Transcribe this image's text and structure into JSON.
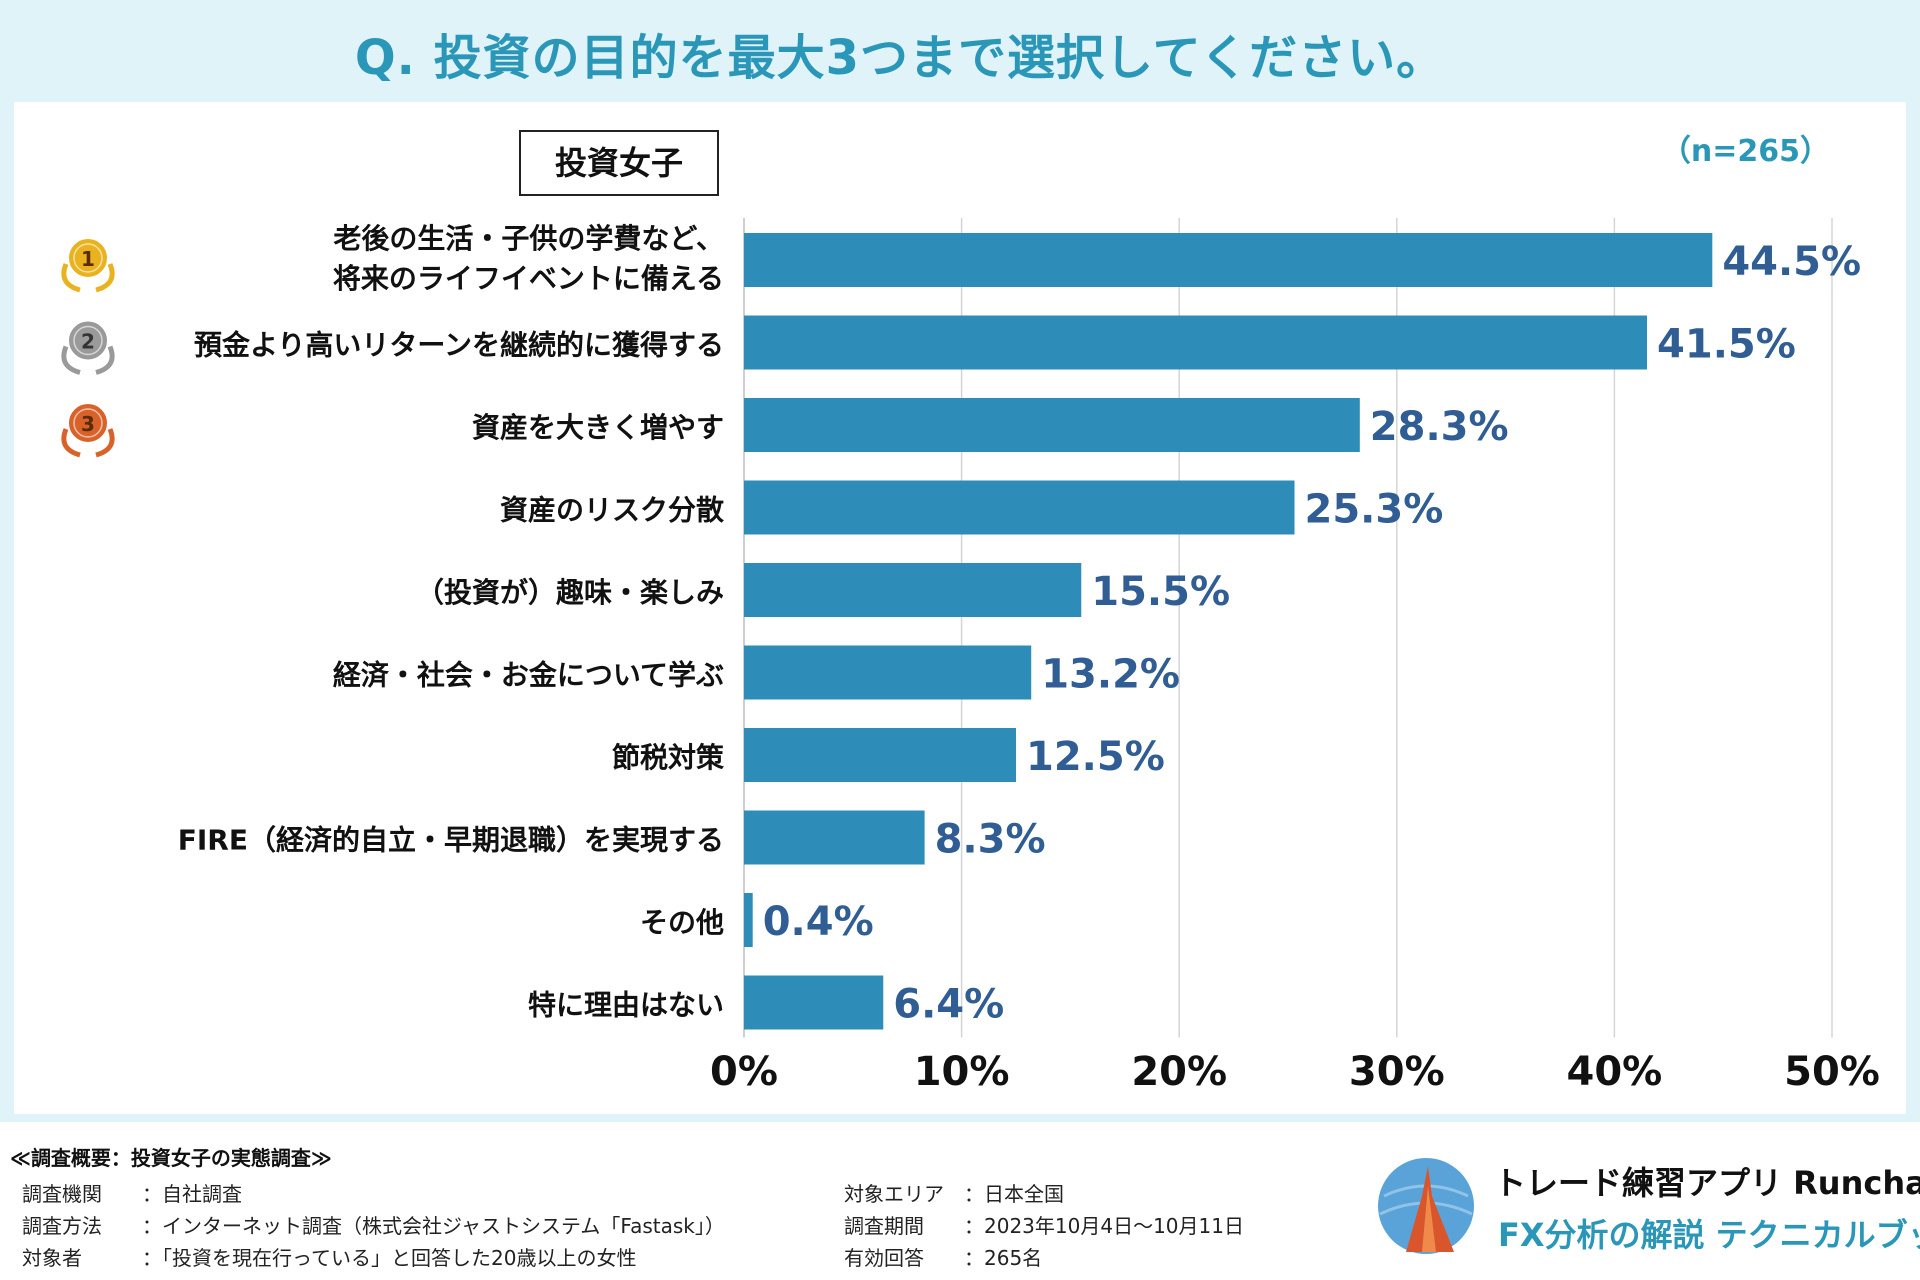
{
  "title": "Q. 投資の目的を最大3つまで選択してください。",
  "group_label": "投資女子",
  "sample_size": "（n=265）",
  "chart_data": {
    "type": "bar",
    "orientation": "horizontal",
    "title": "Q. 投資の目的を最大3つまで選択してください。",
    "categories": [
      [
        "老後の生活・子供の学費など、",
        "将来のライフイベントに備える"
      ],
      [
        "預金より高いリターンを継続的に獲得する"
      ],
      [
        "資産を大きく増やす"
      ],
      [
        "資産のリスク分散"
      ],
      [
        "（投資が）趣味・楽しみ"
      ],
      [
        "経済・社会・お金について学ぶ"
      ],
      [
        "節税対策"
      ],
      [
        "FIRE（経済的自立・早期退職）を実現する"
      ],
      [
        "その他"
      ],
      [
        "特に理由はない"
      ]
    ],
    "values": [
      44.5,
      41.5,
      28.3,
      25.3,
      15.5,
      13.2,
      12.5,
      8.3,
      0.4,
      6.4
    ],
    "value_labels": [
      "44.5%",
      "41.5%",
      "28.3%",
      "25.3%",
      "15.5%",
      "13.2%",
      "12.5%",
      "8.3%",
      "0.4%",
      "6.4%"
    ],
    "rank_badges": [
      "1",
      "2",
      "3"
    ],
    "xlim": [
      0,
      50
    ],
    "xticks": [
      "0%",
      "10%",
      "20%",
      "30%",
      "40%",
      "50%"
    ],
    "grid": true,
    "bar_color": "#2e8cb8",
    "value_label_color": "#2f5d94"
  },
  "survey": {
    "heading": "≪調査概要：投資女子の実態調査≫",
    "left": [
      {
        "key": "調査機関",
        "value": "：自社調査"
      },
      {
        "key": "調査方法",
        "value": "：インターネット調査（株式会社ジャストシステム「Fastask」）"
      },
      {
        "key": "対象者",
        "value": "：「投資を現在行っている」と回答した20歳以上の女性"
      }
    ],
    "right": [
      {
        "key": "対象エリア",
        "value": "：日本全国"
      },
      {
        "key": "調査期間",
        "value": "：2023年10月4日〜10月11日"
      },
      {
        "key": "有効回答",
        "value": "：265名"
      }
    ]
  },
  "brand": {
    "name": "トレード練習アプリ  Runcha",
    "subtitle": "FX分析の解説  テクニカルブック"
  },
  "colors": {
    "accent": "#2a97b8",
    "background_band": "#dff3f8",
    "gold": "#e9b21f",
    "silver": "#9a9a9a",
    "bronze": "#d9622b"
  }
}
